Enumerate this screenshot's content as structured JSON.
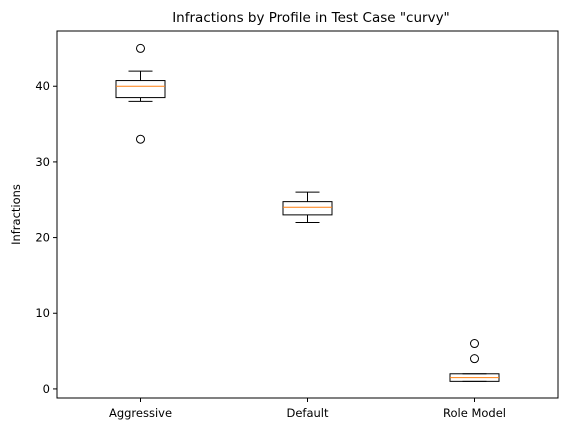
{
  "chart_data": {
    "type": "box",
    "title": "Infractions by Profile in Test Case \"curvy\"",
    "xlabel": "",
    "ylabel": "Infractions",
    "ylim": [
      -1.2,
      47.3
    ],
    "yticks": [
      0,
      10,
      20,
      30,
      40
    ],
    "grid": false,
    "categories": [
      "Aggressive",
      "Default",
      "Role Model"
    ],
    "boxes": [
      {
        "whislo": 38,
        "q1": 38.5,
        "med": 40,
        "q3": 40.75,
        "whishi": 42,
        "fliers": [
          45,
          33
        ]
      },
      {
        "whislo": 22,
        "q1": 23,
        "med": 24,
        "q3": 24.75,
        "whishi": 26,
        "fliers": []
      },
      {
        "whislo": 1,
        "q1": 1,
        "med": 1.5,
        "q3": 2,
        "whishi": 2,
        "fliers": [
          6,
          4
        ]
      }
    ],
    "colors": {
      "box": "#000000",
      "median": "#ff7f0e",
      "flier": "#000000"
    }
  }
}
